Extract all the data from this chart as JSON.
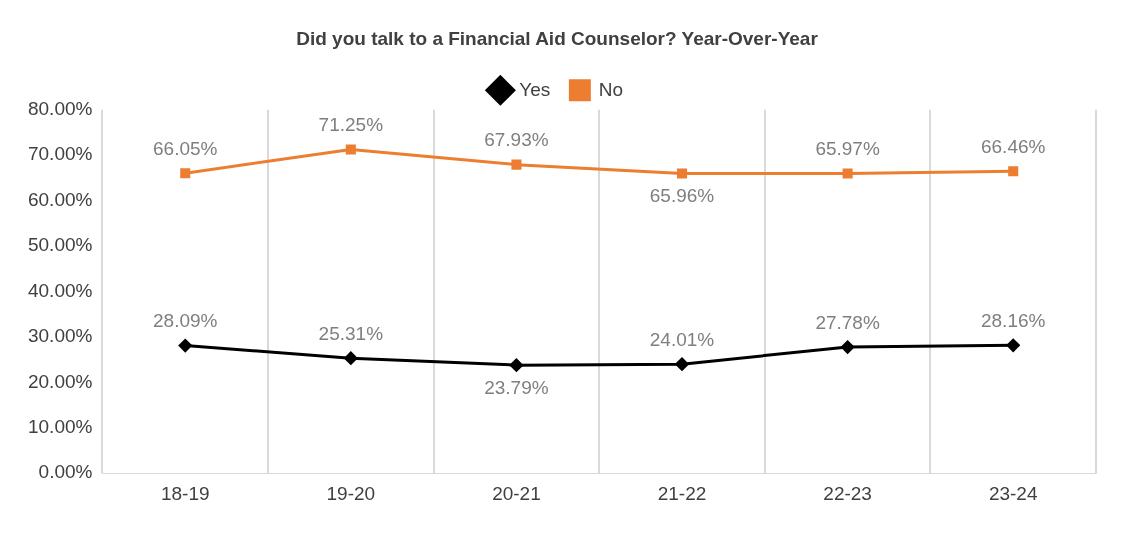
{
  "chart_data": {
    "type": "line",
    "title": "Did you talk to a Financial Aid Counselor? Year-Over-Year",
    "categories": [
      "18-19",
      "19-20",
      "20-21",
      "21-22",
      "22-23",
      "23-24"
    ],
    "series": [
      {
        "name": "Yes",
        "color": "#000000",
        "marker": "diamond",
        "values": [
          28.09,
          25.31,
          23.79,
          24.01,
          27.78,
          28.16
        ],
        "value_labels": [
          "28.09%",
          "25.31%",
          "23.79%",
          "24.01%",
          "27.78%",
          "28.16%"
        ]
      },
      {
        "name": "No",
        "color": "#ed7d31",
        "marker": "square",
        "values": [
          66.05,
          71.25,
          67.93,
          65.96,
          65.97,
          66.46
        ],
        "value_labels": [
          "66.05%",
          "71.25%",
          "67.93%",
          "65.96%",
          "65.97%",
          "66.46%"
        ]
      }
    ],
    "ylim": [
      0,
      80
    ],
    "yticks": [
      {
        "value": 0,
        "label": "0.00%"
      },
      {
        "value": 10,
        "label": "10.00%"
      },
      {
        "value": 20,
        "label": "20.00%"
      },
      {
        "value": 30,
        "label": "30.00%"
      },
      {
        "value": 40,
        "label": "40.00%"
      },
      {
        "value": 50,
        "label": "50.00%"
      },
      {
        "value": 60,
        "label": "60.00%"
      },
      {
        "value": 70,
        "label": "70.00%"
      },
      {
        "value": 80,
        "label": "80.00%"
      }
    ],
    "grid": "x",
    "legend": "top"
  }
}
